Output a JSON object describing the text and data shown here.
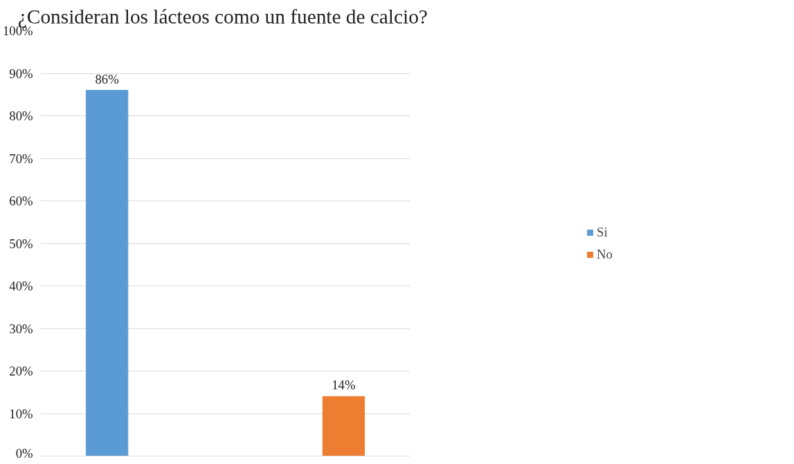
{
  "chart_data": {
    "type": "bar",
    "title": "¿Consideran los  lácteos como un fuente de calcio?",
    "categories": [
      null
    ],
    "series": [
      {
        "name": "Si",
        "color": "#5b9bd5",
        "values": [
          86
        ],
        "value_labels": [
          "86%"
        ]
      },
      {
        "name": "No",
        "color": "#ed7d31",
        "values": [
          14
        ],
        "value_labels": [
          "14%"
        ]
      }
    ],
    "ylim": [
      0,
      100
    ],
    "yticks": [
      {
        "value": 0,
        "label": "0%"
      },
      {
        "value": 10,
        "label": "10%"
      },
      {
        "value": 20,
        "label": "20%"
      },
      {
        "value": 30,
        "label": "30%"
      },
      {
        "value": 40,
        "label": "40%"
      },
      {
        "value": 50,
        "label": "50%"
      },
      {
        "value": 60,
        "label": "60%"
      },
      {
        "value": 70,
        "label": "70%"
      },
      {
        "value": 80,
        "label": "80%"
      },
      {
        "value": 90,
        "label": "90%"
      },
      {
        "value": 100,
        "label": "100%"
      }
    ],
    "grid": "y",
    "legend": "right",
    "tick_labels": "y"
  }
}
